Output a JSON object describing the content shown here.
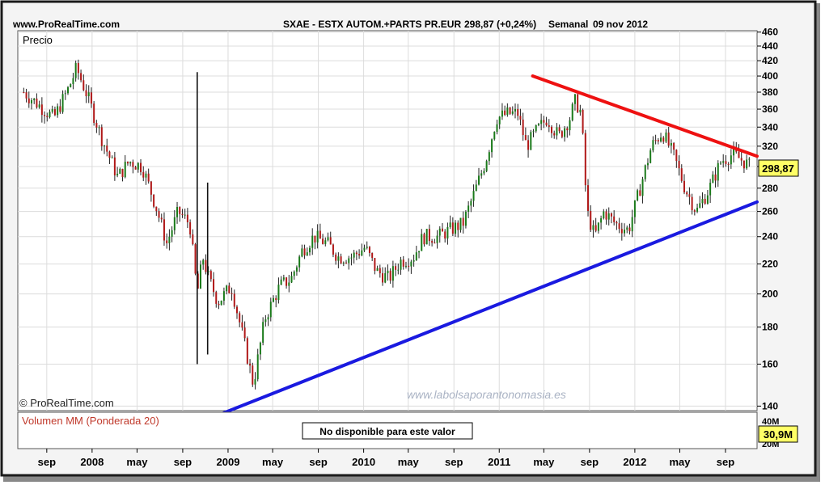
{
  "header": {
    "site": "www.ProRealTime.com",
    "instrument": "SXAE - ESTX AUTOM.+PARTS PR.EUR",
    "last_value": "298,87 (+0,24%)",
    "period": "Semanal",
    "date": "09 nov 2012"
  },
  "copyright": "© ProRealTime.com",
  "watermark": "www.labolsaporantonomasia.es",
  "price_panel": {
    "label": "Precio",
    "last_price_tag": "298,87"
  },
  "volume_panel": {
    "label": "Volumen MM (Ponderada 20)",
    "message": "No disponible para este valor",
    "value_tag": "30,9M",
    "tick_top": "40M",
    "tick_bottom": "20M"
  },
  "colors": {
    "resistance": "#ee1111",
    "support": "#1a1ae0",
    "candle_up": "#1a7a1a",
    "candle_down": "#b01818",
    "volume_label": "#c0392b",
    "tag_bg": "#ffff66",
    "frame_dark": "#1a1a1a"
  },
  "chart_data": {
    "type": "candlestick",
    "title": "SXAE - ESTX AUTOM.+PARTS PR.EUR",
    "ylabel": "Precio",
    "y_scale": "log",
    "ylim": [
      138,
      462
    ],
    "xlim": [
      "2007-06-15",
      "2012-11-25"
    ],
    "y_ticks": [
      140,
      160,
      180,
      200,
      220,
      240,
      260,
      280,
      300,
      320,
      340,
      360,
      380,
      400,
      420,
      440,
      460
    ],
    "x_ticks": [
      {
        "label": "sep",
        "date": "2007-09-01"
      },
      {
        "label": "2008",
        "date": "2008-01-01"
      },
      {
        "label": "may",
        "date": "2008-05-01"
      },
      {
        "label": "sep",
        "date": "2008-09-01"
      },
      {
        "label": "2009",
        "date": "2009-01-01"
      },
      {
        "label": "may",
        "date": "2009-05-01"
      },
      {
        "label": "sep",
        "date": "2009-09-01"
      },
      {
        "label": "2010",
        "date": "2010-01-01"
      },
      {
        "label": "may",
        "date": "2010-05-01"
      },
      {
        "label": "sep",
        "date": "2010-09-01"
      },
      {
        "label": "2011",
        "date": "2011-01-01"
      },
      {
        "label": "may",
        "date": "2011-05-01"
      },
      {
        "label": "sep",
        "date": "2011-09-01"
      },
      {
        "label": "2012",
        "date": "2012-01-01"
      },
      {
        "label": "may",
        "date": "2012-05-01"
      },
      {
        "label": "sep",
        "date": "2012-09-01"
      }
    ],
    "price_path": [
      [
        "2007-07-01",
        380
      ],
      [
        "2007-08-10",
        365
      ],
      [
        "2007-09-20",
        350
      ],
      [
        "2007-10-30",
        385
      ],
      [
        "2007-11-20",
        410
      ],
      [
        "2007-12-20",
        375
      ],
      [
        "2008-01-25",
        330
      ],
      [
        "2008-03-10",
        290
      ],
      [
        "2008-04-10",
        305
      ],
      [
        "2008-05-15",
        300
      ],
      [
        "2008-06-20",
        265
      ],
      [
        "2008-07-20",
        235
      ],
      [
        "2008-08-20",
        260
      ],
      [
        "2008-09-20",
        250
      ],
      [
        "2008-10-10",
        200
      ],
      [
        "2008-10-25",
        225
      ],
      [
        "2008-11-10",
        210
      ],
      [
        "2008-12-05",
        195
      ],
      [
        "2009-01-10",
        205
      ],
      [
        "2009-02-15",
        170
      ],
      [
        "2009-03-10",
        150
      ],
      [
        "2009-04-10",
        185
      ],
      [
        "2009-05-20",
        205
      ],
      [
        "2009-06-20",
        210
      ],
      [
        "2009-07-20",
        230
      ],
      [
        "2009-08-20",
        240
      ],
      [
        "2009-09-25",
        235
      ],
      [
        "2009-10-25",
        225
      ],
      [
        "2009-11-30",
        225
      ],
      [
        "2010-01-05",
        232
      ],
      [
        "2010-02-05",
        215
      ],
      [
        "2010-03-10",
        210
      ],
      [
        "2010-04-10",
        222
      ],
      [
        "2010-05-15",
        225
      ],
      [
        "2010-06-10",
        240
      ],
      [
        "2010-07-20",
        240
      ],
      [
        "2010-08-20",
        245
      ],
      [
        "2010-09-25",
        250
      ],
      [
        "2010-10-25",
        275
      ],
      [
        "2010-11-25",
        305
      ],
      [
        "2010-12-25",
        350
      ],
      [
        "2011-01-25",
        355
      ],
      [
        "2011-02-20",
        355
      ],
      [
        "2011-03-15",
        320
      ],
      [
        "2011-04-10",
        335
      ],
      [
        "2011-05-10",
        350
      ],
      [
        "2011-06-10",
        330
      ],
      [
        "2011-07-10",
        350
      ],
      [
        "2011-07-25",
        370
      ],
      [
        "2011-08-10",
        355
      ],
      [
        "2011-08-25",
        260
      ],
      [
        "2011-09-15",
        240
      ],
      [
        "2011-10-10",
        260
      ],
      [
        "2011-11-10",
        250
      ],
      [
        "2011-12-15",
        245
      ],
      [
        "2012-01-15",
        280
      ],
      [
        "2012-02-15",
        320
      ],
      [
        "2012-03-15",
        335
      ],
      [
        "2012-04-15",
        310
      ],
      [
        "2012-05-15",
        280
      ],
      [
        "2012-06-15",
        260
      ],
      [
        "2012-07-20",
        280
      ],
      [
        "2012-08-20",
        305
      ],
      [
        "2012-09-20",
        312
      ],
      [
        "2012-10-20",
        305
      ],
      [
        "2012-11-09",
        298.87
      ]
    ],
    "spikes": [
      {
        "date": "2008-10-10",
        "high": 405,
        "low": 160
      },
      {
        "date": "2008-11-07",
        "high": 285,
        "low": 165
      }
    ],
    "trendlines": [
      {
        "name": "resistance",
        "from": [
          "2011-04-01",
          400
        ],
        "to": [
          "2012-11-25",
          310
        ]
      },
      {
        "name": "support",
        "from": [
          "2008-12-20",
          137
        ],
        "to": [
          "2012-11-25",
          268
        ]
      }
    ],
    "last_price": 298.87,
    "grid": true,
    "legend": "none"
  }
}
